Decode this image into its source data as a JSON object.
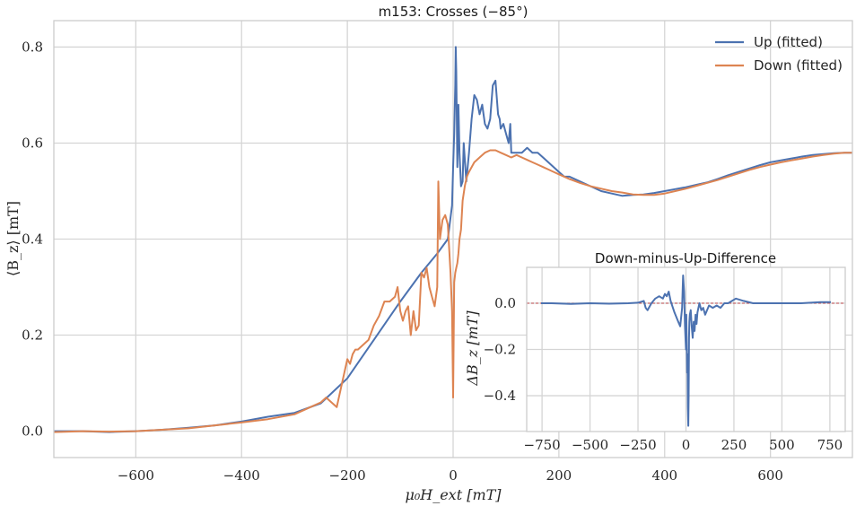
{
  "chart_data": [
    {
      "type": "line",
      "title": "m153: Crosses (−85°)",
      "xlabel": "μ₀H_ext [mT]",
      "ylabel": "⟨B_z⟩ [mT]",
      "xlim": [
        -755,
        755
      ],
      "ylim": [
        -0.055,
        0.855
      ],
      "xticks": [
        -600,
        -400,
        -200,
        0,
        200,
        400,
        600
      ],
      "xtick_labels": [
        "−600",
        "−400",
        "−200",
        "0",
        "200",
        "400",
        "600"
      ],
      "yticks": [
        0.0,
        0.2,
        0.4,
        0.6,
        0.8
      ],
      "ytick_labels": [
        "0.0",
        "0.2",
        "0.4",
        "0.6",
        "0.8"
      ],
      "grid": true,
      "legend_position": "upper-right",
      "series": [
        {
          "name": "Up (fitted)",
          "color": "#4c72b0",
          "x": [
            -755,
            -700,
            -650,
            -600,
            -550,
            -500,
            -450,
            -400,
            -350,
            -300,
            -250,
            -200,
            -150,
            -100,
            -60,
            -30,
            -10,
            -2,
            0,
            2,
            4,
            5,
            6,
            7,
            8,
            10,
            12,
            15,
            18,
            20,
            25,
            30,
            35,
            40,
            45,
            50,
            55,
            60,
            65,
            70,
            75,
            80,
            85,
            88,
            90,
            95,
            100,
            105,
            108,
            110,
            115,
            120,
            130,
            140,
            150,
            160,
            170,
            180,
            190,
            200,
            210,
            220,
            240,
            260,
            280,
            300,
            320,
            340,
            360,
            380,
            400,
            420,
            440,
            460,
            480,
            500,
            520,
            540,
            560,
            580,
            600,
            620,
            640,
            660,
            680,
            700,
            720,
            740,
            755
          ],
          "y": [
            0.0,
            0.0,
            -0.002,
            0.0,
            0.003,
            0.007,
            0.012,
            0.02,
            0.03,
            0.038,
            0.058,
            0.11,
            0.19,
            0.27,
            0.33,
            0.37,
            0.4,
            0.47,
            0.55,
            0.62,
            0.72,
            0.8,
            0.75,
            0.65,
            0.55,
            0.68,
            0.58,
            0.51,
            0.52,
            0.6,
            0.52,
            0.58,
            0.65,
            0.7,
            0.69,
            0.66,
            0.68,
            0.64,
            0.63,
            0.65,
            0.72,
            0.73,
            0.66,
            0.65,
            0.63,
            0.64,
            0.62,
            0.6,
            0.64,
            0.58,
            0.58,
            0.58,
            0.58,
            0.59,
            0.58,
            0.58,
            0.57,
            0.56,
            0.55,
            0.54,
            0.53,
            0.53,
            0.52,
            0.51,
            0.5,
            0.495,
            0.49,
            0.492,
            0.493,
            0.496,
            0.5,
            0.504,
            0.508,
            0.513,
            0.518,
            0.525,
            0.533,
            0.54,
            0.547,
            0.554,
            0.56,
            0.564,
            0.568,
            0.572,
            0.575,
            0.577,
            0.579,
            0.58,
            0.58
          ]
        },
        {
          "name": "Down (fitted)",
          "color": "#dd8452",
          "x": [
            -755,
            -700,
            -650,
            -600,
            -550,
            -500,
            -450,
            -400,
            -350,
            -300,
            -270,
            -250,
            -240,
            -230,
            -220,
            -210,
            -200,
            -195,
            -190,
            -185,
            -180,
            -170,
            -160,
            -150,
            -140,
            -130,
            -120,
            -110,
            -105,
            -100,
            -95,
            -90,
            -85,
            -80,
            -75,
            -70,
            -65,
            -60,
            -55,
            -50,
            -45,
            -40,
            -35,
            -30,
            -28,
            -25,
            -20,
            -15,
            -10,
            -5,
            -2,
            0,
            2,
            4,
            6,
            8,
            10,
            12,
            15,
            18,
            22,
            26,
            30,
            40,
            50,
            60,
            70,
            80,
            90,
            100,
            110,
            120,
            130,
            140,
            150,
            160,
            170,
            180,
            190,
            200,
            210,
            220,
            240,
            260,
            280,
            300,
            320,
            340,
            360,
            380,
            400,
            420,
            440,
            460,
            480,
            500,
            520,
            540,
            560,
            580,
            600,
            620,
            640,
            660,
            680,
            700,
            720,
            740,
            755
          ],
          "y": [
            -0.002,
            0.0,
            -0.001,
            0.0,
            0.003,
            0.006,
            0.012,
            0.018,
            0.025,
            0.035,
            0.05,
            0.06,
            0.07,
            0.06,
            0.05,
            0.1,
            0.15,
            0.14,
            0.16,
            0.17,
            0.17,
            0.18,
            0.19,
            0.22,
            0.24,
            0.27,
            0.27,
            0.28,
            0.3,
            0.25,
            0.23,
            0.25,
            0.26,
            0.2,
            0.25,
            0.21,
            0.22,
            0.33,
            0.32,
            0.34,
            0.3,
            0.28,
            0.26,
            0.3,
            0.52,
            0.4,
            0.44,
            0.45,
            0.43,
            0.33,
            0.25,
            0.07,
            0.31,
            0.33,
            0.34,
            0.35,
            0.37,
            0.4,
            0.42,
            0.48,
            0.51,
            0.53,
            0.54,
            0.56,
            0.57,
            0.58,
            0.585,
            0.585,
            0.58,
            0.575,
            0.57,
            0.575,
            0.57,
            0.565,
            0.56,
            0.555,
            0.55,
            0.545,
            0.54,
            0.535,
            0.53,
            0.525,
            0.517,
            0.51,
            0.505,
            0.5,
            0.497,
            0.493,
            0.492,
            0.492,
            0.495,
            0.5,
            0.505,
            0.511,
            0.517,
            0.523,
            0.53,
            0.537,
            0.544,
            0.55,
            0.555,
            0.56,
            0.564,
            0.568,
            0.572,
            0.575,
            0.578,
            0.58,
            0.58
          ]
        }
      ]
    },
    {
      "type": "line",
      "title": "Down-minus-Up-Difference",
      "xlabel": "",
      "ylabel": "ΔB_z [mT]",
      "xlim": [
        -830,
        830
      ],
      "ylim": [
        -0.555,
        0.155
      ],
      "xticks": [
        -750,
        -500,
        -250,
        0,
        250,
        500,
        750
      ],
      "xtick_labels": [
        "−750",
        "−500",
        "−250",
        "0",
        "250",
        "500",
        "750"
      ],
      "yticks": [
        0.0,
        -0.2,
        -0.4
      ],
      "ytick_labels": [
        "0.0",
        "−0.2",
        "−0.4"
      ],
      "grid": true,
      "reference_line": {
        "y": 0.0,
        "color": "#c44e52"
      },
      "series": [
        {
          "name": "",
          "color": "#4c72b0",
          "x": [
            -755,
            -700,
            -600,
            -500,
            -400,
            -300,
            -250,
            -220,
            -210,
            -200,
            -180,
            -160,
            -140,
            -120,
            -110,
            -100,
            -90,
            -80,
            -60,
            -40,
            -30,
            -20,
            -15,
            -10,
            -5,
            0,
            2,
            4,
            6,
            8,
            10,
            12,
            14,
            16,
            18,
            20,
            25,
            30,
            35,
            40,
            45,
            50,
            55,
            60,
            70,
            80,
            90,
            100,
            110,
            120,
            140,
            160,
            180,
            200,
            220,
            240,
            260,
            300,
            350,
            400,
            500,
            600,
            700,
            755
          ],
          "y": [
            0.0,
            0.0,
            -0.003,
            0.0,
            -0.002,
            0.0,
            0.002,
            0.01,
            -0.02,
            -0.03,
            0.0,
            0.02,
            0.03,
            0.02,
            0.04,
            0.03,
            0.05,
            0.01,
            -0.04,
            -0.08,
            -0.1,
            -0.02,
            0.12,
            0.05,
            -0.1,
            -0.2,
            -0.05,
            -0.18,
            -0.3,
            -0.22,
            -0.45,
            -0.53,
            -0.4,
            -0.15,
            -0.08,
            -0.05,
            -0.03,
            -0.1,
            -0.15,
            -0.08,
            -0.12,
            -0.05,
            -0.09,
            -0.04,
            0.0,
            -0.03,
            -0.02,
            -0.05,
            -0.03,
            -0.01,
            -0.02,
            -0.01,
            -0.02,
            0.0,
            0.0,
            0.01,
            0.02,
            0.01,
            0.0,
            0.0,
            0.0,
            0.0,
            0.005,
            0.005
          ]
        }
      ]
    }
  ]
}
